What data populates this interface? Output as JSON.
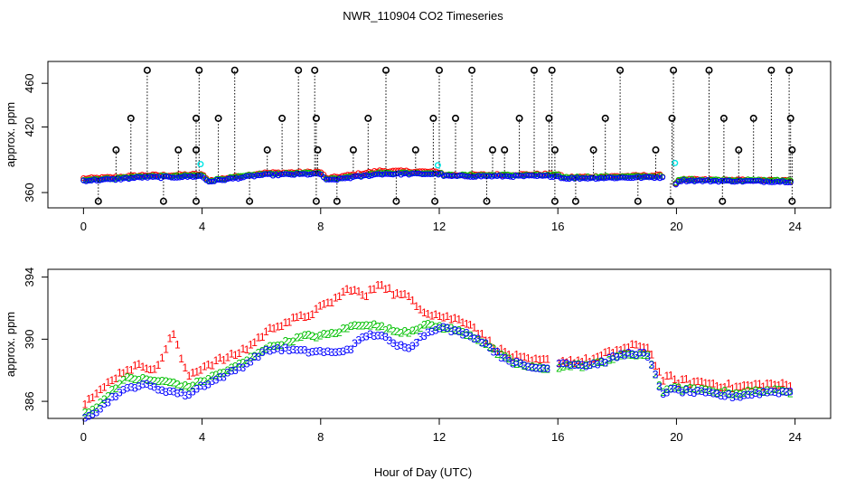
{
  "chart_data": [
    {
      "type": "scatter",
      "title": "NWR_110904  CO2 Timeseries",
      "xlabel": "",
      "ylabel": "approx. ppm",
      "xlim": [
        -1.2,
        25.2
      ],
      "ylim": [
        346,
        480
      ],
      "xticks": [
        0,
        4,
        8,
        12,
        16,
        20,
        24
      ],
      "yticks": [
        360,
        420,
        460
      ],
      "ytick_labels": [
        "360",
        "420",
        "460"
      ],
      "spike_marker": "black open circle with vertical dotted drop line",
      "series_colors": {
        "line1": "#ff0000",
        "line2": "#00c000",
        "line3": "#0000ff",
        "flag": "#00e5e5",
        "spike": "#000000"
      },
      "base_series": [
        {
          "name": "1",
          "x": [
            0,
            1,
            2,
            3,
            4,
            4.2,
            6,
            8,
            8.2,
            10,
            12,
            12.2,
            16,
            16.2,
            19.5,
            19.9,
            20.1,
            24
          ],
          "y": [
            373,
            374,
            376,
            376,
            377,
            371,
            378,
            379,
            373,
            380,
            379,
            376,
            377,
            374,
            376,
            366,
            372,
            371
          ]
        },
        {
          "name": "2",
          "x": [
            0,
            1,
            2,
            3,
            4,
            4.2,
            6,
            8,
            8.2,
            10,
            12,
            12.2,
            16,
            16.2,
            19.5,
            19.9,
            20.1,
            24
          ],
          "y": [
            372,
            373,
            375,
            375,
            376,
            371,
            377,
            378,
            372,
            378,
            378,
            376,
            376,
            374,
            375,
            366,
            372,
            371
          ]
        },
        {
          "name": "3",
          "x": [
            0,
            1,
            2,
            3,
            4,
            4.2,
            6,
            8,
            8.2,
            10,
            12,
            12.2,
            16,
            16.2,
            19.5,
            19.9,
            20.1,
            24
          ],
          "y": [
            371,
            372,
            374,
            374,
            375,
            370,
            376,
            377,
            371,
            377,
            377,
            375,
            375,
            373,
            374,
            366,
            371,
            370
          ]
        }
      ],
      "spikes_top": [
        2.15,
        3.9,
        5.1,
        7.25,
        7.8,
        10.2,
        12.0,
        13.1,
        15.2,
        15.8,
        18.1,
        19.9,
        21.1,
        23.2,
        23.8
      ],
      "spikes_mid": [
        1.6,
        3.8,
        4.55,
        6.7,
        7.85,
        9.6,
        11.8,
        12.55,
        14.7,
        15.7,
        17.6,
        19.85,
        21.6,
        22.6,
        23.85
      ],
      "spikes_low": [
        1.1,
        3.2,
        3.8,
        6.2,
        7.9,
        9.1,
        11.2,
        13.8,
        14.2,
        15.9,
        17.2,
        19.3,
        22.1,
        23.9
      ],
      "spikes_bottom": [
        0.5,
        2.7,
        3.8,
        5.6,
        7.85,
        8.55,
        10.55,
        11.85,
        13.6,
        15.9,
        16.6,
        18.7,
        19.8,
        21.55,
        23.9
      ],
      "spike_levels": [
        472,
        428,
        399,
        352
      ],
      "flag_points": [
        {
          "x": 3.95,
          "y": 386
        },
        {
          "x": 11.95,
          "y": 385
        },
        {
          "x": 19.95,
          "y": 387
        }
      ]
    },
    {
      "type": "scatter",
      "title": "",
      "xlabel": "Hour of Day (UTC)",
      "ylabel": "approx. ppm",
      "xlim": [
        -1.2,
        25.2
      ],
      "ylim": [
        384.9,
        394.5
      ],
      "xticks": [
        0,
        4,
        8,
        12,
        16,
        20,
        24
      ],
      "yticks": [
        386,
        390,
        394
      ],
      "ytick_labels": [
        "386",
        "390",
        "394"
      ],
      "marker_labels": [
        "1",
        "2",
        "3"
      ],
      "series_colors": {
        "1": "#ff0000",
        "2": "#00c000",
        "3": "#0000ff"
      },
      "base_series": [
        {
          "name": "1",
          "x": [
            0,
            0.5,
            1,
            1.5,
            2,
            2.5,
            3,
            3.5,
            4,
            4.5,
            5,
            5.5,
            6,
            6.5,
            7,
            7.5,
            8,
            8.5,
            9,
            9.5,
            10,
            10.5,
            11,
            11.5,
            12,
            12.5,
            13,
            13.5,
            14,
            14.5,
            15,
            15.5,
            16,
            16.5,
            17,
            17.5,
            18,
            18.5,
            19,
            19.3,
            19.5,
            19.8,
            20,
            21,
            22,
            23,
            23.8
          ],
          "y": [
            385.9,
            386.5,
            387.5,
            388.1,
            388.3,
            388.1,
            390.5,
            387.6,
            388.2,
            388.6,
            388.9,
            389.4,
            390.2,
            390.9,
            391.2,
            391.5,
            392.0,
            392.6,
            393.3,
            392.7,
            393.7,
            392.9,
            392.7,
            391.8,
            391.5,
            391.3,
            391.1,
            390.1,
            389.3,
            388.9,
            388.6,
            388.6,
            388.6,
            388.6,
            388.6,
            388.9,
            389.3,
            389.5,
            389.6,
            388.4,
            387.4,
            387.5,
            387.3,
            387.2,
            386.9,
            387.1,
            387.0
          ]
        },
        {
          "name": "2",
          "x": [
            0,
            0.5,
            1,
            1.5,
            2,
            2.5,
            3,
            3.5,
            4,
            4.5,
            5,
            5.5,
            6,
            6.5,
            7,
            7.5,
            8,
            8.5,
            9,
            9.5,
            10,
            10.5,
            11,
            11.5,
            12,
            12.5,
            13,
            13.5,
            14,
            14.5,
            15,
            15.5,
            16,
            16.5,
            17,
            17.5,
            18,
            18.5,
            19,
            19.3,
            19.5,
            19.8,
            20,
            21,
            22,
            23,
            23.8
          ],
          "y": [
            385.2,
            385.7,
            386.8,
            387.5,
            387.4,
            387.3,
            387.2,
            386.9,
            387.3,
            387.7,
            388.1,
            388.6,
            389.3,
            389.6,
            389.9,
            390.2,
            390.2,
            390.4,
            390.8,
            391.0,
            390.8,
            390.5,
            390.5,
            390.9,
            390.8,
            390.6,
            390.3,
            389.8,
            389.0,
            388.5,
            388.2,
            388.1,
            388.2,
            388.3,
            388.3,
            388.5,
            388.9,
            389.0,
            389.0,
            387.7,
            386.6,
            386.9,
            386.8,
            386.7,
            386.5,
            386.7,
            386.6
          ]
        },
        {
          "name": "3",
          "x": [
            0,
            0.5,
            1,
            1.5,
            2,
            2.5,
            3,
            3.5,
            4,
            4.5,
            5,
            5.5,
            6,
            6.5,
            7,
            7.5,
            8,
            8.5,
            9,
            9.5,
            10,
            10.5,
            11,
            11.5,
            12,
            12.5,
            13,
            13.5,
            14,
            14.5,
            15,
            15.5,
            16,
            16.5,
            17,
            17.5,
            18,
            18.5,
            19,
            19.3,
            19.5,
            19.8,
            20,
            21,
            22,
            23,
            23.8
          ],
          "y": [
            385.0,
            385.4,
            386.3,
            386.8,
            387.1,
            386.8,
            386.6,
            386.4,
            387.0,
            387.4,
            387.9,
            388.4,
            389.1,
            389.4,
            389.3,
            389.2,
            389.2,
            389.1,
            389.4,
            390.2,
            390.3,
            389.6,
            389.5,
            390.3,
            390.8,
            390.5,
            390.3,
            389.8,
            389.0,
            388.5,
            388.2,
            388.1,
            388.5,
            388.4,
            388.3,
            388.5,
            388.9,
            389.1,
            389.0,
            387.6,
            386.5,
            386.7,
            386.7,
            386.5,
            386.3,
            386.6,
            386.6
          ]
        }
      ]
    }
  ]
}
